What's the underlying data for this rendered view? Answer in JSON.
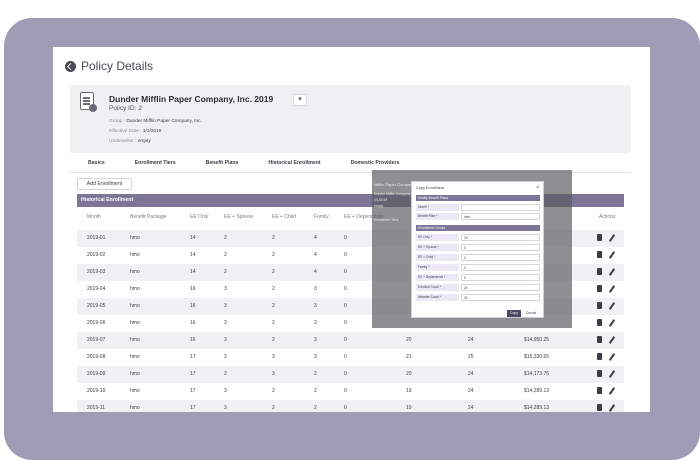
{
  "page": {
    "title": "Policy Details"
  },
  "policy": {
    "company": "Dunder Mifflin Paper Company, Inc. 2019",
    "policy_id": "Policy ID: 2",
    "group_key": "Group :",
    "group_value": "Dunder Mifflin Paper Company, Inc.",
    "effective_key": "Effective Date :",
    "effective_value": "1/1/2019",
    "underwriter_key": "Underwriter :",
    "underwriter_value": "empty",
    "dropdown_glyph": "▾"
  },
  "tabs": [
    {
      "label": "Basics"
    },
    {
      "label": "Enrollment Tiers"
    },
    {
      "label": "Benefit Plans"
    },
    {
      "label": "Historical Enrollment"
    },
    {
      "label": "Domestic Providers"
    }
  ],
  "add_button": "Add Enrollment",
  "table": {
    "title": "Historical Enrollment",
    "headers": [
      "Month",
      "Benefit Package",
      "EE Only",
      "EE + Spouse",
      "EE + Child",
      "Family",
      "EE + Dependents",
      "Actions"
    ],
    "rows": [
      {
        "month": "2019-01",
        "pkg": "hmo",
        "ee": "14",
        "sp": "2",
        "ch": "2",
        "fam": "4",
        "dep": "0",
        "a": "",
        "b": "",
        "c": ""
      },
      {
        "month": "2019-02",
        "pkg": "hmo",
        "ee": "14",
        "sp": "2",
        "ch": "2",
        "fam": "4",
        "dep": "0",
        "a": "",
        "b": "",
        "c": ""
      },
      {
        "month": "2019-03",
        "pkg": "hmo",
        "ee": "14",
        "sp": "2",
        "ch": "2",
        "fam": "4",
        "dep": "0",
        "a": "",
        "b": "",
        "c": ""
      },
      {
        "month": "2019-04",
        "pkg": "hmo",
        "ee": "16",
        "sp": "3",
        "ch": "2",
        "fam": "3",
        "dep": "0",
        "a": "",
        "b": "",
        "c": ""
      },
      {
        "month": "2019-05",
        "pkg": "hmo",
        "ee": "16",
        "sp": "3",
        "ch": "2",
        "fam": "3",
        "dep": "0",
        "a": "",
        "b": "",
        "c": ""
      },
      {
        "month": "2019-06",
        "pkg": "hmo",
        "ee": "16",
        "sp": "3",
        "ch": "2",
        "fam": "3",
        "dep": "0",
        "a": "",
        "b": "",
        "c": ""
      },
      {
        "month": "2019-07",
        "pkg": "hmo",
        "ee": "16",
        "sp": "3",
        "ch": "2",
        "fam": "3",
        "dep": "0",
        "a": "20",
        "b": "24",
        "c": "$14,950.25"
      },
      {
        "month": "2019-08",
        "pkg": "hmo",
        "ee": "17",
        "sp": "2",
        "ch": "3",
        "fam": "3",
        "dep": "0",
        "a": "21",
        "b": "25",
        "c": "$15,330.65"
      },
      {
        "month": "2019-09",
        "pkg": "hmo",
        "ee": "17",
        "sp": "2",
        "ch": "3",
        "fam": "2",
        "dep": "0",
        "a": "20",
        "b": "24",
        "c": "$14,173.76"
      },
      {
        "month": "2019-10",
        "pkg": "hmo",
        "ee": "17",
        "sp": "3",
        "ch": "2",
        "fam": "2",
        "dep": "0",
        "a": "19",
        "b": "24",
        "c": "$14,289.13"
      },
      {
        "month": "2019-11",
        "pkg": "hmo",
        "ee": "17",
        "sp": "3",
        "ch": "2",
        "fam": "2",
        "dep": "0",
        "a": "19",
        "b": "24",
        "c": "$14,289.13"
      }
    ]
  },
  "modal": {
    "title": "Copy Enrollment",
    "close": "×",
    "section1": "Modify Benefit Plans",
    "section2": "Enrollment Counts",
    "fields1": [
      {
        "label": "Month *",
        "value": ""
      },
      {
        "label": "Benefit Plan *",
        "value": "hmo"
      }
    ],
    "fields2": [
      {
        "label": "EE Only *",
        "value": "16"
      },
      {
        "label": "EE + Spouse *",
        "value": "3"
      },
      {
        "label": "EE + Child *",
        "value": "2"
      },
      {
        "label": "Family *",
        "value": "3"
      },
      {
        "label": "EE + Dependents *",
        "value": "0"
      },
      {
        "label": "Enrolled Count *",
        "value": "20"
      },
      {
        "label": "Member Count *",
        "value": "24"
      }
    ],
    "copy_label": "Copy",
    "cancel_label": "Cancel",
    "behind_title": "Mifflin Paper Company",
    "behind_lines": [
      "Dunder Mifflin Company, Inc.",
      "1/1/2019",
      "empty",
      "Enrollment Tiers"
    ]
  },
  "colors": {
    "accent": "#7c7597",
    "frame": "#a19cb6"
  }
}
